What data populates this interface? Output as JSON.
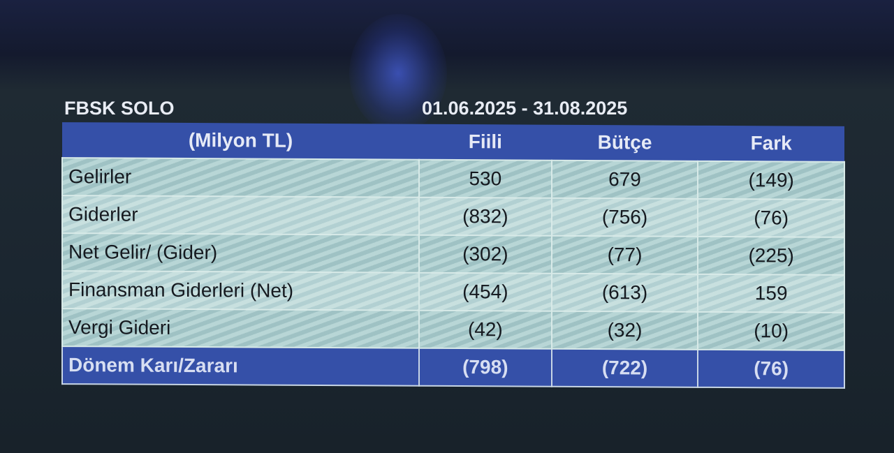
{
  "entity": "FBSK SOLO",
  "period": "01.06.2025 - 31.08.2025",
  "table": {
    "headers": [
      "(Milyon TL)",
      "Fiili",
      "Bütçe",
      "Fark"
    ],
    "rows": [
      {
        "label": "Gelirler",
        "fiili": "530",
        "butce": "679",
        "fark": "(149)"
      },
      {
        "label": "Giderler",
        "fiili": "(832)",
        "butce": "(756)",
        "fark": "(76)"
      },
      {
        "label": "Net Gelir/ (Gider)",
        "fiili": "(302)",
        "butce": "(77)",
        "fark": "(225)"
      },
      {
        "label": "Finansman Giderleri (Net)",
        "fiili": "(454)",
        "butce": "(613)",
        "fark": "159"
      },
      {
        "label": "Vergi Gideri",
        "fiili": "(42)",
        "butce": "(32)",
        "fark": "(10)"
      }
    ],
    "total": {
      "label": "Dönem Karı/Zararı",
      "fiili": "(798)",
      "butce": "(722)",
      "fark": "(76)"
    }
  },
  "colors": {
    "header_bg": "#3550a8",
    "row_bg": "#b8d6d6",
    "background": "#1b2630"
  }
}
